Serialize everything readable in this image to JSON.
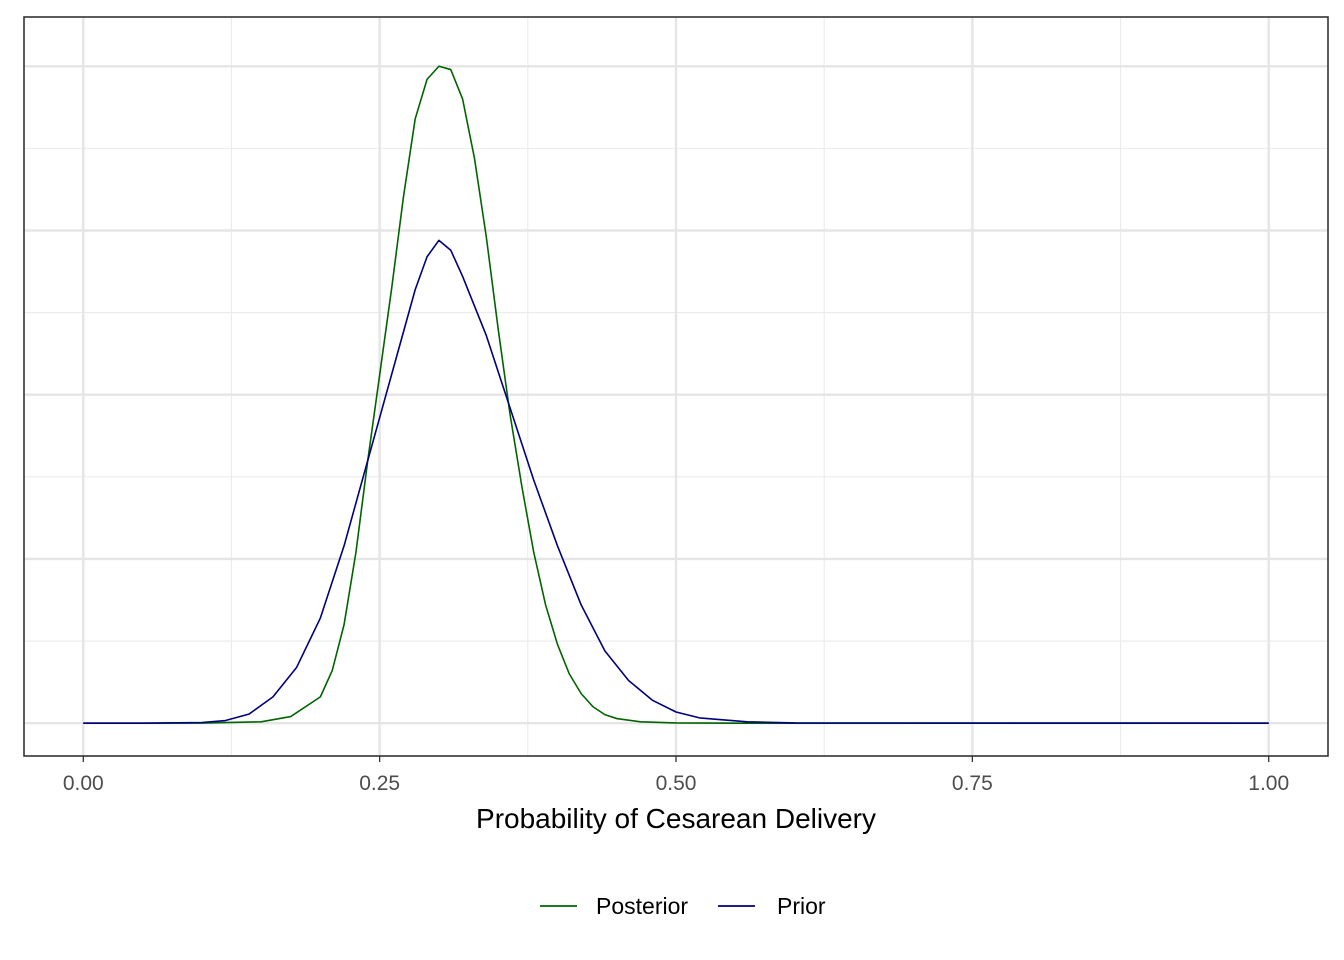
{
  "chart_data": {
    "type": "line",
    "title": "",
    "xlabel": "Probability of Cesarean Delivery",
    "ylabel": "",
    "xlim": [
      -0.05,
      1.05
    ],
    "ylim": [
      -0.05,
      1.075
    ],
    "x_ticks": [
      0.0,
      0.25,
      0.5,
      0.75,
      1.0
    ],
    "x_tick_labels": [
      "0.00",
      "0.25",
      "0.50",
      "0.75",
      "1.00"
    ],
    "y_ticks_visible": false,
    "grid": true,
    "legend_position": "bottom",
    "series": [
      {
        "name": "Posterior",
        "color": "#006400",
        "x": [
          0.0,
          0.05,
          0.1,
          0.15,
          0.175,
          0.2,
          0.21,
          0.22,
          0.23,
          0.24,
          0.25,
          0.26,
          0.27,
          0.28,
          0.29,
          0.3,
          0.31,
          0.32,
          0.33,
          0.34,
          0.35,
          0.36,
          0.37,
          0.38,
          0.39,
          0.4,
          0.41,
          0.42,
          0.43,
          0.44,
          0.45,
          0.47,
          0.5,
          0.55,
          0.6,
          1.0
        ],
        "y": [
          0.0,
          0.0,
          0.0002,
          0.002,
          0.01,
          0.04,
          0.08,
          0.15,
          0.26,
          0.4,
          0.53,
          0.66,
          0.8,
          0.92,
          0.98,
          1.0,
          0.995,
          0.95,
          0.86,
          0.74,
          0.6,
          0.47,
          0.36,
          0.26,
          0.18,
          0.12,
          0.075,
          0.045,
          0.025,
          0.013,
          0.007,
          0.002,
          0.0003,
          0.0,
          0.0,
          0.0
        ]
      },
      {
        "name": "Prior",
        "color": "#00007d",
        "x": [
          0.0,
          0.05,
          0.1,
          0.12,
          0.14,
          0.16,
          0.18,
          0.2,
          0.22,
          0.24,
          0.26,
          0.28,
          0.29,
          0.3,
          0.31,
          0.32,
          0.34,
          0.36,
          0.38,
          0.4,
          0.42,
          0.44,
          0.46,
          0.48,
          0.5,
          0.52,
          0.56,
          0.6,
          1.0
        ],
        "y": [
          0.0,
          0.0,
          0.001,
          0.004,
          0.014,
          0.04,
          0.085,
          0.16,
          0.27,
          0.4,
          0.53,
          0.66,
          0.71,
          0.735,
          0.72,
          0.68,
          0.59,
          0.48,
          0.37,
          0.27,
          0.18,
          0.11,
          0.065,
          0.035,
          0.017,
          0.008,
          0.002,
          0.0003,
          0.0
        ]
      }
    ]
  }
}
